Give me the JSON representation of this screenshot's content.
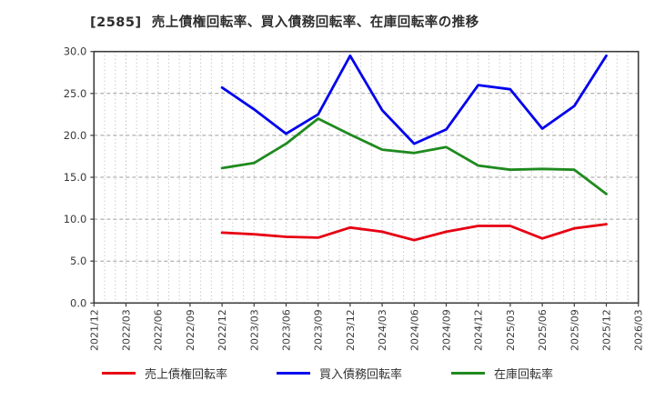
{
  "chart_data": {
    "type": "line",
    "title": "[2585]  売上債権回転率、買入債務回転率、在庫回転率の推移",
    "xlabel": "",
    "ylabel": "",
    "ylim": [
      0,
      30
    ],
    "yticks": [
      0,
      5,
      10,
      15,
      20,
      25,
      30
    ],
    "ytick_labels": [
      "0.0",
      "5.0",
      "10.0",
      "15.0",
      "20.0",
      "25.0",
      "30.0"
    ],
    "grid": true,
    "legend_position": "bottom-center",
    "categories": [
      "2021/12",
      "2022/03",
      "2022/06",
      "2022/09",
      "2022/12",
      "2023/03",
      "2023/06",
      "2023/09",
      "2023/12",
      "2024/03",
      "2024/06",
      "2024/09",
      "2024/12",
      "2025/03",
      "2025/06",
      "2025/09",
      "2025/12",
      "2026/03"
    ],
    "series": [
      {
        "name": "売上債権回転率",
        "color": "#e60012",
        "values": [
          null,
          null,
          null,
          null,
          8.4,
          8.2,
          7.9,
          7.8,
          9.0,
          8.5,
          7.5,
          8.5,
          9.2,
          9.2,
          7.7,
          8.9,
          9.4,
          null
        ]
      },
      {
        "name": "買入債務回転率",
        "color": "#0000ee",
        "values": [
          null,
          null,
          null,
          null,
          25.7,
          23.1,
          20.2,
          22.5,
          29.5,
          23.0,
          19.0,
          20.7,
          26.0,
          25.5,
          20.8,
          23.5,
          29.5,
          null
        ]
      },
      {
        "name": "在庫回転率",
        "color": "#1f8a1f",
        "values": [
          null,
          null,
          null,
          null,
          16.1,
          16.7,
          19.0,
          22.0,
          20.1,
          18.3,
          17.9,
          18.6,
          16.4,
          15.9,
          16.0,
          15.9,
          13.0,
          null
        ]
      }
    ],
    "style": {
      "grid_vertical_color": "#b4b4b4",
      "grid_horizontal_color": "#9e9e9e",
      "spine_color": "#3c3c3c",
      "tick_label_color": "#3a3a3a"
    }
  }
}
